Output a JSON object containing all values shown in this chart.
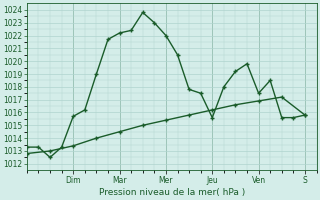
{
  "title": "",
  "xlabel": "Pression niveau de la mer( hPa )",
  "bg_color": "#d4ede9",
  "grid_color": "#b0d4ce",
  "line_color": "#1a5c2a",
  "ylim": [
    1011.5,
    1024.5
  ],
  "yticks": [
    1012,
    1013,
    1014,
    1015,
    1016,
    1017,
    1018,
    1019,
    1020,
    1021,
    1022,
    1023,
    1024
  ],
  "day_labels": [
    "Dim",
    "Mar",
    "Mer",
    "Jeu",
    "Ven",
    "S"
  ],
  "day_positions": [
    2,
    4,
    6,
    8,
    10,
    12
  ],
  "xlim": [
    0,
    12.5
  ],
  "line1_x": [
    0.0,
    0.5,
    1.0,
    1.5,
    2.0,
    2.5,
    3.0,
    3.5,
    4.0,
    4.5,
    5.0,
    5.5,
    6.0,
    6.5,
    7.0,
    7.5,
    8.0,
    8.5,
    9.0,
    9.5,
    10.0,
    10.5,
    11.0,
    11.5,
    12.0
  ],
  "line1_y": [
    1013.3,
    1013.3,
    1012.5,
    1013.3,
    1015.7,
    1016.2,
    1019.0,
    1021.7,
    1022.2,
    1022.4,
    1023.8,
    1023.0,
    1022.0,
    1020.5,
    1017.8,
    1017.5,
    1015.6,
    1018.0,
    1019.2,
    1019.8,
    1017.5,
    1018.5,
    1015.6,
    1015.6,
    1015.8
  ],
  "line2_x": [
    0.0,
    1.0,
    2.0,
    3.0,
    4.0,
    5.0,
    6.0,
    7.0,
    8.0,
    9.0,
    10.0,
    11.0,
    12.0
  ],
  "line2_y": [
    1012.8,
    1013.0,
    1013.4,
    1014.0,
    1014.5,
    1015.0,
    1015.4,
    1015.8,
    1016.2,
    1016.6,
    1016.9,
    1017.2,
    1015.8
  ],
  "marker_size": 3.5,
  "line_width": 1.0,
  "tick_labelsize": 5.5,
  "xlabel_fontsize": 6.5
}
